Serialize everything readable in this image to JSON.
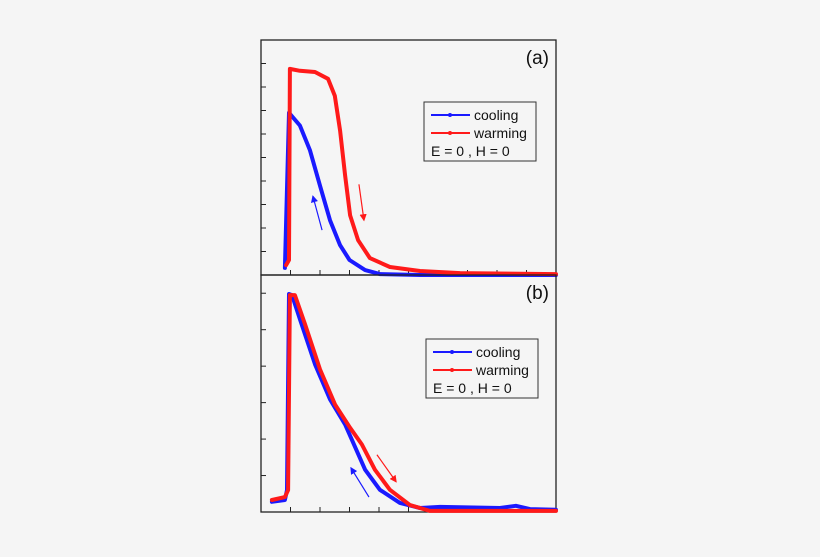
{
  "chart_data": [
    {
      "type": "line",
      "panel_label": "(a)",
      "xlim": [
        0,
        10
      ],
      "ylim": [
        0,
        10
      ],
      "x_ticks": [
        1,
        2,
        3,
        4,
        5,
        6,
        7,
        8,
        9
      ],
      "y_ticks": [
        1,
        2,
        3,
        4,
        5,
        6,
        7,
        8,
        9
      ],
      "tick_labels_shown": false,
      "grid": false,
      "legend_placement": "center-right",
      "legend_note": "E = 0 ,  H = 0",
      "series": [
        {
          "name": "cooling",
          "color": "#1a1aff",
          "points": [
            [
              0.81,
              0.3
            ],
            [
              0.95,
              6.9
            ],
            [
              1.32,
              6.36
            ],
            [
              1.66,
              5.3
            ],
            [
              2.0,
              3.8
            ],
            [
              2.34,
              2.33
            ],
            [
              2.68,
              1.27
            ],
            [
              3.0,
              0.64
            ],
            [
              3.53,
              0.21
            ],
            [
              4.03,
              0.04
            ],
            [
              5.4,
              0.0
            ],
            [
              10,
              0.0
            ]
          ]
        },
        {
          "name": "warming",
          "color": "#ff1a1a",
          "points": [
            [
              0.85,
              0.42
            ],
            [
              0.95,
              0.64
            ],
            [
              0.98,
              8.77
            ],
            [
              1.32,
              8.69
            ],
            [
              1.83,
              8.64
            ],
            [
              2.27,
              8.35
            ],
            [
              2.5,
              7.63
            ],
            [
              2.68,
              6.14
            ],
            [
              2.85,
              4.24
            ],
            [
              3.02,
              2.54
            ],
            [
              3.29,
              1.48
            ],
            [
              3.69,
              0.72
            ],
            [
              4.37,
              0.34
            ],
            [
              5.39,
              0.17
            ],
            [
              6.75,
              0.08
            ],
            [
              10,
              0.04
            ]
          ]
        }
      ],
      "arrows": [
        {
          "color": "#1a1aff",
          "from": [
            2.07,
            1.91
          ],
          "to": [
            1.76,
            3.35
          ]
        },
        {
          "color": "#ff1a1a",
          "from": [
            3.32,
            3.86
          ],
          "to": [
            3.49,
            2.33
          ]
        }
      ]
    },
    {
      "type": "line",
      "panel_label": "(b)",
      "xlim": [
        0,
        10
      ],
      "ylim": [
        0,
        6.5
      ],
      "x_ticks": [
        1,
        2,
        3,
        4,
        5,
        6,
        7,
        8,
        9
      ],
      "y_ticks": [
        1,
        2,
        3,
        4,
        5,
        6
      ],
      "tick_labels_shown": false,
      "grid": false,
      "legend_placement": "center-right",
      "legend_note": "E = 0 ,  H = 0",
      "series": [
        {
          "name": "cooling",
          "color": "#1a1aff",
          "points": [
            [
              0.37,
              0.28
            ],
            [
              0.81,
              0.33
            ],
            [
              0.88,
              0.6
            ],
            [
              0.95,
              5.98
            ],
            [
              1.05,
              5.95
            ],
            [
              1.32,
              5.29
            ],
            [
              1.83,
              4.05
            ],
            [
              2.34,
              3.09
            ],
            [
              2.85,
              2.4
            ],
            [
              3.08,
              1.98
            ],
            [
              3.53,
              1.16
            ],
            [
              4.03,
              0.61
            ],
            [
              4.71,
              0.25
            ],
            [
              5.39,
              0.11
            ],
            [
              6.07,
              0.14
            ],
            [
              8.1,
              0.11
            ],
            [
              8.64,
              0.17
            ],
            [
              9.12,
              0.08
            ],
            [
              10,
              0.06
            ]
          ]
        },
        {
          "name": "warming",
          "color": "#ff1a1a",
          "points": [
            [
              0.37,
              0.33
            ],
            [
              0.81,
              0.41
            ],
            [
              0.92,
              0.6
            ],
            [
              0.98,
              5.95
            ],
            [
              1.15,
              5.95
            ],
            [
              1.49,
              5.15
            ],
            [
              2.0,
              3.91
            ],
            [
              2.51,
              2.95
            ],
            [
              3.02,
              2.31
            ],
            [
              3.42,
              1.85
            ],
            [
              3.86,
              1.16
            ],
            [
              4.37,
              0.61
            ],
            [
              5.05,
              0.19
            ],
            [
              5.73,
              0.03
            ],
            [
              10,
              0.03
            ]
          ]
        }
      ],
      "arrows": [
        {
          "color": "#1a1aff",
          "from": [
            3.66,
            0.41
          ],
          "to": [
            3.05,
            1.21
          ]
        },
        {
          "color": "#ff1a1a",
          "from": [
            3.93,
            1.57
          ],
          "to": [
            4.58,
            0.83
          ]
        }
      ]
    }
  ]
}
